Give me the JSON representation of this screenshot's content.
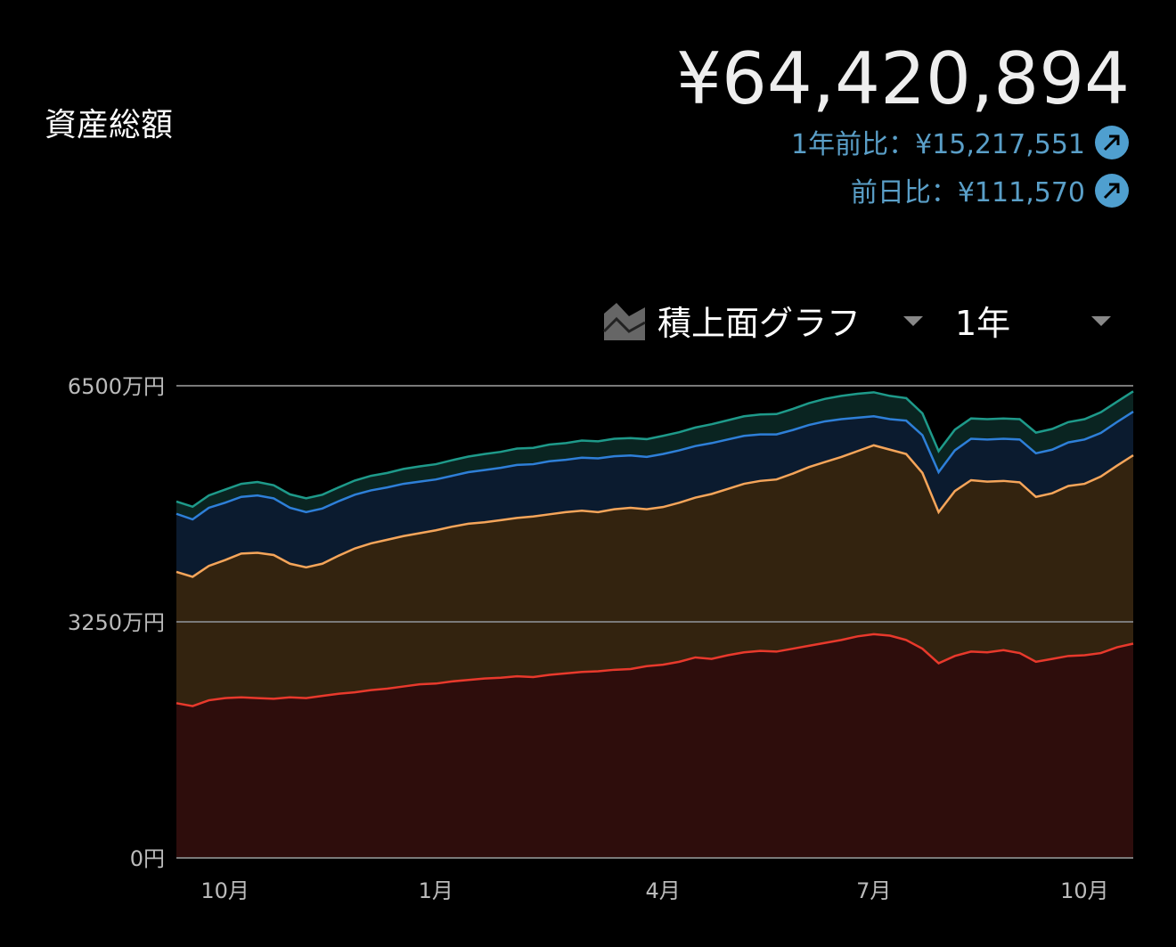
{
  "header": {
    "title": "資産総額",
    "total": "¥64,420,894",
    "year_change": "1年前比：¥15,217,551",
    "day_change": "前日比：¥111,570"
  },
  "controls": {
    "chart_type": "積上面グラフ",
    "period": "1年"
  },
  "chart_data": {
    "type": "stacked-area",
    "categories": [
      null,
      null,
      null,
      "10月",
      null,
      null,
      null,
      null,
      null,
      null,
      null,
      null,
      null,
      null,
      null,
      null,
      "1月",
      null,
      null,
      null,
      null,
      null,
      null,
      null,
      null,
      null,
      null,
      null,
      null,
      null,
      "4月",
      null,
      null,
      null,
      null,
      null,
      null,
      null,
      null,
      null,
      null,
      null,
      null,
      "7月",
      null,
      null,
      null,
      null,
      null,
      null,
      null,
      null,
      null,
      null,
      null,
      null,
      "10月",
      null,
      null,
      null
    ],
    "series": [
      {
        "color": "#e8392c",
        "fill": "#2e0d0c",
        "values": [
          2130,
          2090,
          2170,
          2200,
          2210,
          2200,
          2190,
          2210,
          2200,
          2230,
          2260,
          2280,
          2310,
          2330,
          2360,
          2390,
          2400,
          2430,
          2450,
          2470,
          2480,
          2500,
          2490,
          2520,
          2540,
          2560,
          2570,
          2590,
          2600,
          2640,
          2660,
          2700,
          2760,
          2740,
          2790,
          2830,
          2850,
          2840,
          2880,
          2920,
          2960,
          3000,
          3050,
          3080,
          3060,
          3000,
          2880,
          2680,
          2780,
          2840,
          2830,
          2860,
          2820,
          2700,
          2740,
          2780,
          2790,
          2820,
          2900,
          2950
        ]
      },
      {
        "color": "#f5a55a",
        "fill": "#33230f",
        "values": [
          1807,
          1780,
          1850,
          1900,
          1980,
          2000,
          1980,
          1840,
          1800,
          1820,
          1900,
          1980,
          2020,
          2050,
          2070,
          2080,
          2110,
          2130,
          2150,
          2150,
          2170,
          2180,
          2210,
          2210,
          2220,
          2220,
          2190,
          2210,
          2220,
          2160,
          2170,
          2190,
          2200,
          2270,
          2290,
          2320,
          2340,
          2370,
          2410,
          2460,
          2490,
          2520,
          2550,
          2600,
          2560,
          2560,
          2420,
          2080,
          2270,
          2360,
          2350,
          2330,
          2350,
          2270,
          2280,
          2340,
          2360,
          2430,
          2500,
          2593
        ]
      },
      {
        "color": "#2e7fd8",
        "fill": "#0b1b2f",
        "values": [
          800,
          790,
          800,
          790,
          780,
          790,
          780,
          770,
          760,
          760,
          750,
          740,
          730,
          720,
          720,
          710,
          700,
          700,
          710,
          720,
          720,
          730,
          720,
          730,
          720,
          730,
          740,
          730,
          720,
          720,
          730,
          720,
          710,
          700,
          680,
          660,
          640,
          620,
          600,
          580,
          560,
          520,
          460,
          400,
          420,
          460,
          520,
          550,
          560,
          570,
          580,
          580,
          590,
          600,
          600,
          600,
          610,
          600,
          600,
          600
        ]
      },
      {
        "color": "#1e9a8a",
        "fill": "#0a2421",
        "values": [
          170,
          175,
          170,
          180,
          180,
          185,
          180,
          185,
          190,
          190,
          190,
          195,
          200,
          200,
          205,
          210,
          210,
          215,
          215,
          220,
          220,
          225,
          225,
          230,
          230,
          235,
          235,
          240,
          240,
          245,
          250,
          250,
          255,
          260,
          265,
          270,
          275,
          280,
          290,
          300,
          310,
          320,
          330,
          330,
          320,
          310,
          300,
          290,
          285,
          280,
          280,
          280,
          280,
          285,
          285,
          280,
          280,
          285,
          280,
          280
        ]
      }
    ],
    "ylim": [
      0,
      6500
    ],
    "yticks": [
      {
        "value": 0,
        "label": "0円"
      },
      {
        "value": 3250,
        "label": "3250万円"
      },
      {
        "value": 6500,
        "label": "6500万円"
      }
    ],
    "grid": true
  }
}
